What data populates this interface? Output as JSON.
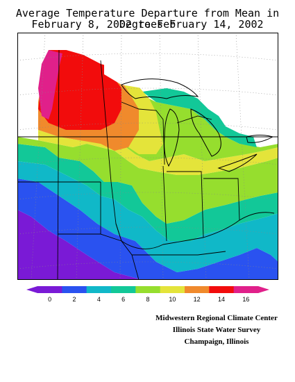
{
  "title": {
    "line1": "Average Temperature Departure from Mean in Degrees F",
    "line2": "February 8, 2002 to February 14, 2002"
  },
  "legend": {
    "ticks": [
      "0",
      "2",
      "4",
      "6",
      "8",
      "10",
      "12",
      "14",
      "16"
    ],
    "colors": [
      "#7a1ad6",
      "#2a52f0",
      "#10b8c8",
      "#12c898",
      "#96de2e",
      "#e4e43a",
      "#f08a2c",
      "#f20c0c",
      "#e0208a"
    ],
    "unit": "Degrees F"
  },
  "credits": {
    "line1": "Midwestern Regional Climate Center",
    "line2": "Illinois State Water Survey",
    "line3": "Champaign, Illinois"
  },
  "map": {
    "region": "Midwestern United States",
    "fill_colors": {
      "purple": "#7a1ad6",
      "blue": "#2a52f0",
      "cyan": "#10b8c8",
      "teal": "#12c898",
      "green": "#96de2e",
      "yellow": "#e4e43a",
      "orange": "#f08a2c",
      "red": "#f20c0c",
      "magenta": "#e0208a"
    }
  }
}
